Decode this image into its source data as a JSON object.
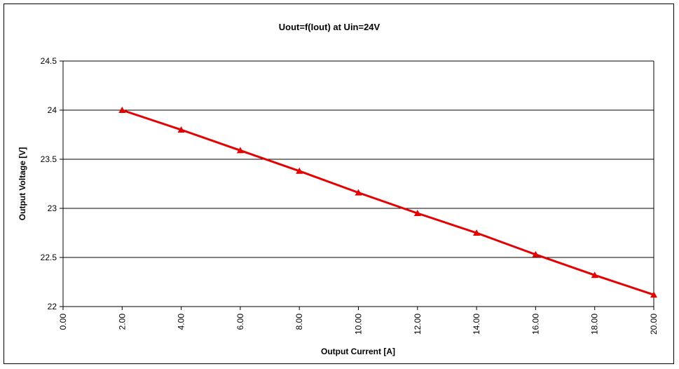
{
  "chart_data": {
    "type": "line",
    "title": "Uout=f(Iout) at Uin=24V",
    "xlabel": "Output Current [A]",
    "ylabel": "Output Voltage [V]",
    "xlim": [
      0,
      20
    ],
    "ylim": [
      22,
      24.5
    ],
    "x_ticks": [
      "0.00",
      "2.00",
      "4.00",
      "6.00",
      "8.00",
      "10.00",
      "12.00",
      "14.00",
      "16.00",
      "18.00",
      "20.00"
    ],
    "y_ticks": [
      "22",
      "22.5",
      "23",
      "23.5",
      "24",
      "24.5"
    ],
    "grid": "horizontal",
    "legend": "none",
    "series": [
      {
        "color": "#e60000",
        "marker": "triangle",
        "x": [
          2,
          4,
          6,
          8,
          10,
          12,
          14,
          16,
          18,
          20
        ],
        "y": [
          24.0,
          23.8,
          23.59,
          23.38,
          23.16,
          22.95,
          22.75,
          22.53,
          22.32,
          22.12
        ]
      }
    ]
  }
}
